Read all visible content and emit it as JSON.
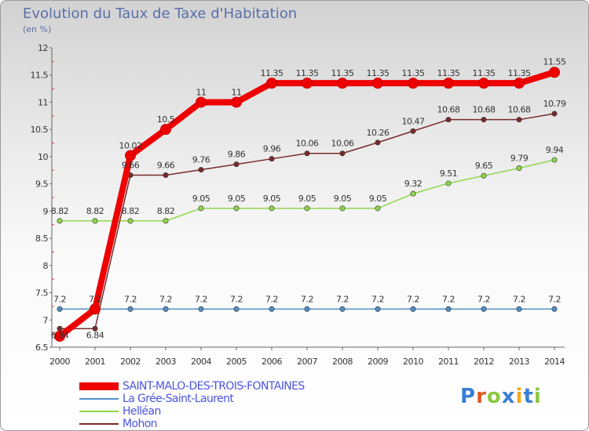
{
  "title": "Evolution du Taux de Taxe d'Habitation",
  "subtitle": "(en %)",
  "logo": {
    "text": "Proxiti",
    "colors": [
      "#3a7fd5",
      "#e05a1e",
      "#8dc63f",
      "#3a7fd5",
      "#f3a81b",
      "#3a7fd5",
      "#8dc63f"
    ]
  },
  "chart_data": {
    "type": "line",
    "title": "Evolution du Taux de Taxe d'Habitation",
    "ylabel": "(en %)",
    "xlabel": "",
    "x": [
      "2000",
      "2001",
      "2002",
      "2003",
      "2004",
      "2005",
      "2006",
      "2007",
      "2008",
      "2009",
      "2010",
      "2011",
      "2012",
      "2013",
      "2014"
    ],
    "ylim": [
      6.5,
      12
    ],
    "yticks": [
      "6.5",
      "7",
      "7.5",
      "8",
      "8.5",
      "9",
      "9.5",
      "10",
      "10.5",
      "11",
      "11.5",
      "12"
    ],
    "grid": false,
    "legend_position": "bottom-left",
    "series": [
      {
        "name": "SAINT-MALO-DES-TROIS-FONTAINES",
        "color": "#ee0000",
        "values": [
          6.7,
          7.2,
          10.02,
          10.5,
          11,
          11,
          11.35,
          11.35,
          11.35,
          11.35,
          11.35,
          11.35,
          11.35,
          11.35,
          11.55
        ],
        "labels": [
          "",
          "",
          "10.02",
          "10.5",
          "11",
          "11",
          "11.35",
          "11.35",
          "11.35",
          "11.35",
          "11.35",
          "11.35",
          "11.35",
          "11.35",
          "11.55"
        ]
      },
      {
        "name": "La Grée-Saint-Laurent",
        "color": "#4f8fc6",
        "values": [
          7.2,
          7.2,
          7.2,
          7.2,
          7.2,
          7.2,
          7.2,
          7.2,
          7.2,
          7.2,
          7.2,
          7.2,
          7.2,
          7.2,
          7.2
        ],
        "labels": [
          "7.2",
          "7.2",
          "7.2",
          "7.2",
          "7.2",
          "7.2",
          "7.2",
          "7.2",
          "7.2",
          "7.2",
          "7.2",
          "7.2",
          "7.2",
          "7.2",
          "7.2"
        ]
      },
      {
        "name": "Helléan",
        "color": "#8fd64c",
        "values": [
          8.82,
          8.82,
          8.82,
          8.82,
          9.05,
          9.05,
          9.05,
          9.05,
          9.05,
          9.05,
          9.32,
          9.51,
          9.65,
          9.79,
          9.94
        ],
        "labels": [
          "8.82",
          "8.82",
          "8.82",
          "8.82",
          "9.05",
          "9.05",
          "9.05",
          "9.05",
          "9.05",
          "9.05",
          "9.32",
          "9.51",
          "9.65",
          "9.79",
          "9.94"
        ]
      },
      {
        "name": "Mohon",
        "color": "#7a2a2a",
        "values": [
          6.84,
          6.84,
          9.66,
          9.66,
          9.76,
          9.86,
          9.96,
          10.06,
          10.06,
          10.26,
          10.47,
          10.68,
          10.68,
          10.68,
          10.79
        ],
        "labels": [
          "6.84",
          "6.84",
          "9.66",
          "9.66",
          "9.76",
          "9.86",
          "9.96",
          "10.06",
          "10.06",
          "10.26",
          "10.47",
          "10.68",
          "10.68",
          "10.68",
          "10.79"
        ]
      }
    ]
  }
}
